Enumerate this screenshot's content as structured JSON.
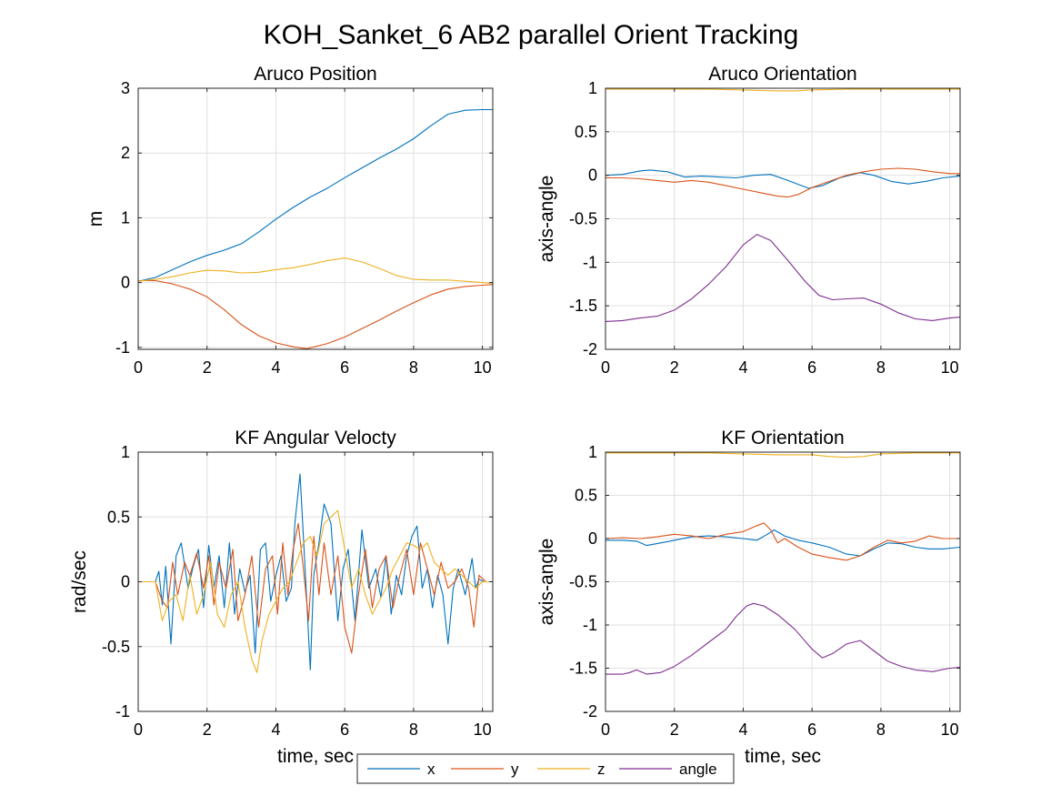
{
  "figure_title": "KOH_Sanket_6 AB2 parallel Orient Tracking",
  "legend": {
    "entries": [
      {
        "label": "x",
        "color": "#0072BD"
      },
      {
        "label": "y",
        "color": "#D95319"
      },
      {
        "label": "z",
        "color": "#EDB120"
      },
      {
        "label": "angle",
        "color": "#7E2F8E"
      }
    ]
  },
  "chart_data": [
    {
      "type": "line",
      "title": "Aruco Position",
      "xlabel": "",
      "ylabel": "m",
      "xlim": [
        0,
        10.3
      ],
      "ylim": [
        -1.03,
        3
      ],
      "xticks": [
        0,
        2,
        4,
        6,
        8,
        10
      ],
      "yticks": [
        -1,
        0,
        1,
        2,
        3
      ],
      "grid": true,
      "series": [
        {
          "name": "x",
          "color": "#0072BD",
          "x": [
            0,
            0.5,
            1,
            1.5,
            2,
            2.5,
            3,
            3.5,
            4,
            4.5,
            5,
            5.5,
            6,
            6.5,
            7,
            7.5,
            8,
            8.5,
            9,
            9.5,
            10,
            10.3
          ],
          "y": [
            0.02,
            0.08,
            0.2,
            0.32,
            0.42,
            0.5,
            0.6,
            0.78,
            0.98,
            1.16,
            1.32,
            1.46,
            1.62,
            1.77,
            1.92,
            2.06,
            2.22,
            2.42,
            2.6,
            2.66,
            2.67,
            2.67
          ]
        },
        {
          "name": "y",
          "color": "#D95319",
          "x": [
            0,
            0.5,
            1,
            1.5,
            2,
            2.5,
            3,
            3.5,
            4,
            4.5,
            4.9,
            5.5,
            6,
            6.5,
            7,
            7.5,
            8,
            8.5,
            9,
            9.5,
            10,
            10.3
          ],
          "y": [
            0.03,
            0.03,
            -0.02,
            -0.1,
            -0.22,
            -0.42,
            -0.65,
            -0.82,
            -0.93,
            -0.99,
            -1.02,
            -0.94,
            -0.84,
            -0.71,
            -0.58,
            -0.44,
            -0.31,
            -0.19,
            -0.1,
            -0.06,
            -0.04,
            -0.03
          ]
        },
        {
          "name": "z",
          "color": "#EDB120",
          "x": [
            0,
            0.5,
            1,
            1.5,
            2,
            2.5,
            3,
            3.5,
            4,
            4.5,
            5,
            5.5,
            6,
            6.5,
            7,
            7.5,
            8,
            8.5,
            9,
            9.5,
            10,
            10.3
          ],
          "y": [
            0.02,
            0.05,
            0.09,
            0.15,
            0.19,
            0.18,
            0.15,
            0.16,
            0.2,
            0.23,
            0.28,
            0.34,
            0.38,
            0.32,
            0.22,
            0.11,
            0.05,
            0.04,
            0.04,
            0.02,
            0.0,
            -0.01
          ]
        }
      ]
    },
    {
      "type": "line",
      "title": "Aruco Orientation",
      "xlabel": "",
      "ylabel": "axis-angle",
      "xlim": [
        0,
        10.3
      ],
      "ylim": [
        -2,
        1
      ],
      "xticks": [
        0,
        2,
        4,
        6,
        8,
        10
      ],
      "yticks": [
        -2,
        -1.5,
        -1,
        -0.5,
        0,
        0.5,
        1
      ],
      "grid": true,
      "series": [
        {
          "name": "x",
          "color": "#0072BD",
          "x": [
            0,
            0.5,
            1,
            1.3,
            1.8,
            2.3,
            2.8,
            3.3,
            3.8,
            4.3,
            4.8,
            5.3,
            5.9,
            6.3,
            6.8,
            7.4,
            7.8,
            8.3,
            8.8,
            9.3,
            9.8,
            10.3
          ],
          "y": [
            0.0,
            0.01,
            0.05,
            0.06,
            0.04,
            -0.02,
            -0.01,
            -0.02,
            -0.03,
            0.0,
            0.01,
            -0.06,
            -0.15,
            -0.12,
            -0.03,
            0.03,
            0.0,
            -0.07,
            -0.1,
            -0.07,
            -0.03,
            -0.01
          ]
        },
        {
          "name": "y",
          "color": "#D95319",
          "x": [
            0,
            0.5,
            1,
            1.5,
            2,
            2.5,
            3,
            3.5,
            4,
            4.5,
            5,
            5.3,
            5.6,
            6,
            6.5,
            7,
            7.5,
            8,
            8.5,
            9,
            9.5,
            10,
            10.3
          ],
          "y": [
            -0.03,
            -0.03,
            -0.04,
            -0.06,
            -0.08,
            -0.06,
            -0.08,
            -0.12,
            -0.16,
            -0.2,
            -0.24,
            -0.25,
            -0.22,
            -0.14,
            -0.07,
            0.0,
            0.04,
            0.07,
            0.08,
            0.07,
            0.04,
            0.02,
            0.02
          ]
        },
        {
          "name": "z",
          "color": "#EDB120",
          "x": [
            0,
            1,
            2,
            3,
            4,
            5,
            5.5,
            6,
            7,
            8,
            9,
            10,
            10.3
          ],
          "y": [
            0.99,
            0.99,
            0.99,
            0.99,
            0.98,
            0.97,
            0.97,
            0.98,
            0.99,
            0.99,
            0.99,
            0.99,
            0.99
          ]
        },
        {
          "name": "angle",
          "color": "#7E2F8E",
          "x": [
            0,
            0.5,
            1,
            1.5,
            2,
            2.5,
            3,
            3.5,
            4,
            4.4,
            4.8,
            5.3,
            5.8,
            6.2,
            6.6,
            7,
            7.5,
            8,
            8.5,
            9,
            9.5,
            10,
            10.3
          ],
          "y": [
            -1.68,
            -1.67,
            -1.64,
            -1.62,
            -1.55,
            -1.42,
            -1.25,
            -1.05,
            -0.8,
            -0.68,
            -0.75,
            -0.98,
            -1.22,
            -1.38,
            -1.43,
            -1.42,
            -1.41,
            -1.48,
            -1.58,
            -1.65,
            -1.67,
            -1.64,
            -1.63
          ]
        }
      ]
    },
    {
      "type": "line",
      "title": "KF Angular Velocty",
      "xlabel": "time, sec",
      "ylabel": "rad/sec",
      "xlim": [
        0,
        10.3
      ],
      "ylim": [
        -1,
        1
      ],
      "xticks": [
        0,
        2,
        4,
        6,
        8,
        10
      ],
      "yticks": [
        -1,
        -0.5,
        0,
        0.5,
        1
      ],
      "grid": true,
      "series": [
        {
          "name": "x",
          "color": "#0072BD",
          "x": [
            0,
            0.5,
            0.6,
            0.7,
            0.8,
            0.95,
            1.1,
            1.25,
            1.45,
            1.6,
            1.75,
            1.9,
            2.05,
            2.2,
            2.35,
            2.5,
            2.65,
            2.8,
            2.95,
            3.1,
            3.25,
            3.4,
            3.55,
            3.7,
            3.85,
            4.0,
            4.15,
            4.3,
            4.45,
            4.55,
            4.7,
            4.85,
            5.0,
            5.1,
            5.25,
            5.4,
            5.6,
            5.8,
            5.95,
            6.1,
            6.3,
            6.5,
            6.7,
            6.9,
            7.05,
            7.2,
            7.35,
            7.5,
            7.65,
            7.8,
            7.95,
            8.1,
            8.25,
            8.4,
            8.55,
            8.7,
            8.85,
            9.0,
            9.15,
            9.3,
            9.5,
            9.7,
            9.8,
            9.9,
            10.05,
            10.3
          ],
          "y": [
            0.0,
            0.0,
            0.08,
            -0.18,
            0.12,
            -0.48,
            0.2,
            0.3,
            -0.05,
            0.12,
            0.25,
            -0.2,
            0.28,
            -0.05,
            0.2,
            -0.2,
            0.3,
            -0.25,
            0.1,
            -0.08,
            0.05,
            -0.55,
            0.25,
            0.3,
            -0.15,
            0.05,
            0.2,
            -0.15,
            -0.05,
            0.45,
            0.83,
            0.1,
            -0.68,
            0.05,
            0.3,
            0.6,
            0.45,
            -0.3,
            0.1,
            0.25,
            -0.3,
            0.4,
            -0.05,
            0.1,
            -0.12,
            0.2,
            -0.25,
            0.05,
            -0.1,
            0.2,
            0.35,
            0.43,
            -0.05,
            0.1,
            -0.2,
            0.05,
            -0.1,
            -0.48,
            -0.05,
            0.1,
            -0.1,
            0.18,
            -0.05,
            0.02,
            0.0,
            0.0
          ]
        },
        {
          "name": "y",
          "color": "#D95319",
          "x": [
            0,
            0.5,
            0.7,
            0.85,
            1.0,
            1.15,
            1.35,
            1.5,
            1.7,
            1.9,
            2.05,
            2.2,
            2.35,
            2.55,
            2.75,
            2.9,
            3.1,
            3.3,
            3.5,
            3.7,
            3.9,
            4.05,
            4.2,
            4.35,
            4.5,
            4.65,
            4.8,
            4.95,
            5.1,
            5.25,
            5.4,
            5.6,
            5.8,
            6.0,
            6.2,
            6.4,
            6.6,
            6.8,
            7.0,
            7.2,
            7.4,
            7.6,
            7.8,
            8.0,
            8.2,
            8.4,
            8.6,
            8.8,
            9.0,
            9.2,
            9.4,
            9.6,
            9.75,
            9.9,
            10.1,
            10.3
          ],
          "y": [
            0.0,
            0.0,
            -0.15,
            -0.2,
            0.15,
            -0.1,
            0.15,
            0.05,
            0.22,
            -0.05,
            0.2,
            -0.18,
            0.15,
            -0.05,
            0.25,
            -0.3,
            -0.1,
            0.2,
            -0.35,
            0.1,
            0.2,
            -0.25,
            0.3,
            -0.1,
            0.25,
            0.45,
            0.1,
            -0.3,
            0.35,
            -0.1,
            0.3,
            -0.1,
            0.2,
            -0.35,
            -0.55,
            -0.1,
            0.25,
            -0.2,
            0.1,
            0.2,
            -0.2,
            0.05,
            0.25,
            -0.1,
            0.3,
            0.1,
            -0.1,
            0.15,
            -0.05,
            0.0,
            0.1,
            -0.05,
            -0.35,
            0.05,
            0.0,
            0.0
          ]
        },
        {
          "name": "z",
          "color": "#EDB120",
          "x": [
            0,
            0.5,
            0.7,
            0.9,
            1.1,
            1.3,
            1.5,
            1.7,
            1.9,
            2.1,
            2.3,
            2.5,
            2.7,
            2.9,
            3.1,
            3.3,
            3.45,
            3.6,
            3.8,
            4.0,
            4.2,
            4.4,
            4.6,
            4.8,
            5.0,
            5.2,
            5.4,
            5.6,
            5.8,
            6.0,
            6.2,
            6.4,
            6.6,
            6.8,
            7.0,
            7.2,
            7.4,
            7.6,
            7.8,
            8.0,
            8.2,
            8.4,
            8.6,
            8.8,
            9.0,
            9.2,
            9.4,
            9.6,
            9.8,
            10.0,
            10.3
          ],
          "y": [
            0.0,
            0.0,
            -0.3,
            -0.15,
            -0.1,
            -0.3,
            0.05,
            -0.25,
            -0.1,
            0.15,
            -0.25,
            -0.35,
            -0.1,
            0.0,
            -0.35,
            -0.6,
            -0.7,
            -0.45,
            -0.25,
            -0.15,
            -0.05,
            0.0,
            0.15,
            0.3,
            0.35,
            0.2,
            0.45,
            0.5,
            0.55,
            0.25,
            -0.05,
            0.1,
            -0.1,
            -0.25,
            -0.15,
            -0.05,
            0.1,
            0.2,
            0.3,
            0.28,
            0.25,
            0.3,
            0.15,
            0.1,
            0.05,
            0.1,
            0.05,
            0.0,
            -0.05,
            0.0,
            0.0
          ]
        }
      ]
    },
    {
      "type": "line",
      "title": "KF Orientation",
      "xlabel": "time, sec",
      "ylabel": "axis-angle",
      "xlim": [
        0,
        10.3
      ],
      "ylim": [
        -2,
        1
      ],
      "xticks": [
        0,
        2,
        4,
        6,
        8,
        10
      ],
      "yticks": [
        -2,
        -1.5,
        -1,
        -0.5,
        0,
        0.5,
        1
      ],
      "grid": true,
      "series": [
        {
          "name": "x",
          "color": "#0072BD",
          "x": [
            0,
            0.5,
            0.9,
            1.2,
            1.6,
            2.0,
            2.5,
            3.0,
            3.5,
            4.0,
            4.4,
            4.7,
            4.9,
            5.2,
            5.6,
            6.0,
            6.5,
            7.0,
            7.4,
            7.8,
            8.2,
            8.6,
            9.0,
            9.4,
            9.8,
            10.3
          ],
          "y": [
            -0.02,
            -0.02,
            -0.03,
            -0.08,
            -0.05,
            -0.02,
            0.02,
            0.03,
            0.02,
            0.0,
            -0.02,
            0.05,
            0.1,
            0.03,
            -0.02,
            -0.05,
            -0.1,
            -0.18,
            -0.2,
            -0.12,
            -0.05,
            -0.06,
            -0.1,
            -0.12,
            -0.12,
            -0.1
          ]
        },
        {
          "name": "y",
          "color": "#D95319",
          "x": [
            0,
            0.5,
            1.0,
            1.5,
            2.0,
            2.5,
            3.0,
            3.5,
            4.0,
            4.4,
            4.6,
            4.8,
            5.0,
            5.2,
            5.6,
            6.0,
            6.5,
            7.0,
            7.4,
            7.8,
            8.2,
            8.6,
            9.0,
            9.4,
            9.8,
            10.3
          ],
          "y": [
            0.0,
            0.01,
            0.0,
            0.02,
            0.05,
            0.03,
            0.0,
            0.05,
            0.08,
            0.15,
            0.18,
            0.1,
            -0.05,
            0.0,
            -0.1,
            -0.18,
            -0.22,
            -0.25,
            -0.2,
            -0.1,
            -0.02,
            -0.05,
            -0.03,
            0.03,
            0.0,
            0.0
          ]
        },
        {
          "name": "z",
          "color": "#EDB120",
          "x": [
            0,
            1,
            2,
            3,
            4,
            5,
            6,
            6.5,
            7,
            7.5,
            8,
            9,
            10,
            10.3
          ],
          "y": [
            0.99,
            0.99,
            0.99,
            0.99,
            0.98,
            0.97,
            0.97,
            0.95,
            0.94,
            0.95,
            0.98,
            0.99,
            0.99,
            0.99
          ]
        },
        {
          "name": "angle",
          "color": "#7E2F8E",
          "x": [
            0,
            0.5,
            0.7,
            0.9,
            1.2,
            1.6,
            2.0,
            2.5,
            3.0,
            3.5,
            3.8,
            4.1,
            4.3,
            4.6,
            5.0,
            5.5,
            6.0,
            6.3,
            6.6,
            7.0,
            7.4,
            7.8,
            8.2,
            8.6,
            9.0,
            9.5,
            10.0,
            10.3
          ],
          "y": [
            -1.57,
            -1.57,
            -1.55,
            -1.52,
            -1.57,
            -1.55,
            -1.48,
            -1.35,
            -1.2,
            -1.05,
            -0.9,
            -0.78,
            -0.75,
            -0.78,
            -0.88,
            -1.05,
            -1.28,
            -1.38,
            -1.33,
            -1.22,
            -1.18,
            -1.3,
            -1.42,
            -1.48,
            -1.52,
            -1.54,
            -1.5,
            -1.49
          ]
        }
      ]
    }
  ]
}
